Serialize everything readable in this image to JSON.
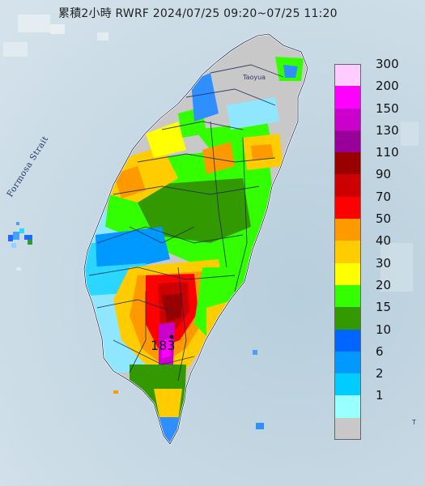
{
  "title": "累積2小時 RWRF 2024/07/25 09:20~07/25 11:20",
  "strait_label": "Formosa Strait",
  "place_label": "Taoyua",
  "corner_label": "T",
  "max_label": "183",
  "legend": [
    {
      "label": "300",
      "color": "#ffccff"
    },
    {
      "label": "200",
      "color": "#ff00ff"
    },
    {
      "label": "150",
      "color": "#cc00cc"
    },
    {
      "label": "130",
      "color": "#990099"
    },
    {
      "label": "110",
      "color": "#990000"
    },
    {
      "label": "90",
      "color": "#cc0000"
    },
    {
      "label": "70",
      "color": "#ff0000"
    },
    {
      "label": "50",
      "color": "#ff9900"
    },
    {
      "label": "40",
      "color": "#ffcc00"
    },
    {
      "label": "30",
      "color": "#ffff00"
    },
    {
      "label": "20",
      "color": "#33ff00"
    },
    {
      "label": "15",
      "color": "#339900"
    },
    {
      "label": "10",
      "color": "#0066ff"
    },
    {
      "label": "6",
      "color": "#0099ff"
    },
    {
      "label": "2",
      "color": "#00ccff"
    },
    {
      "label": "1",
      "color": "#99ffff"
    },
    {
      "label": "",
      "color": "#c8c8c8"
    }
  ]
}
